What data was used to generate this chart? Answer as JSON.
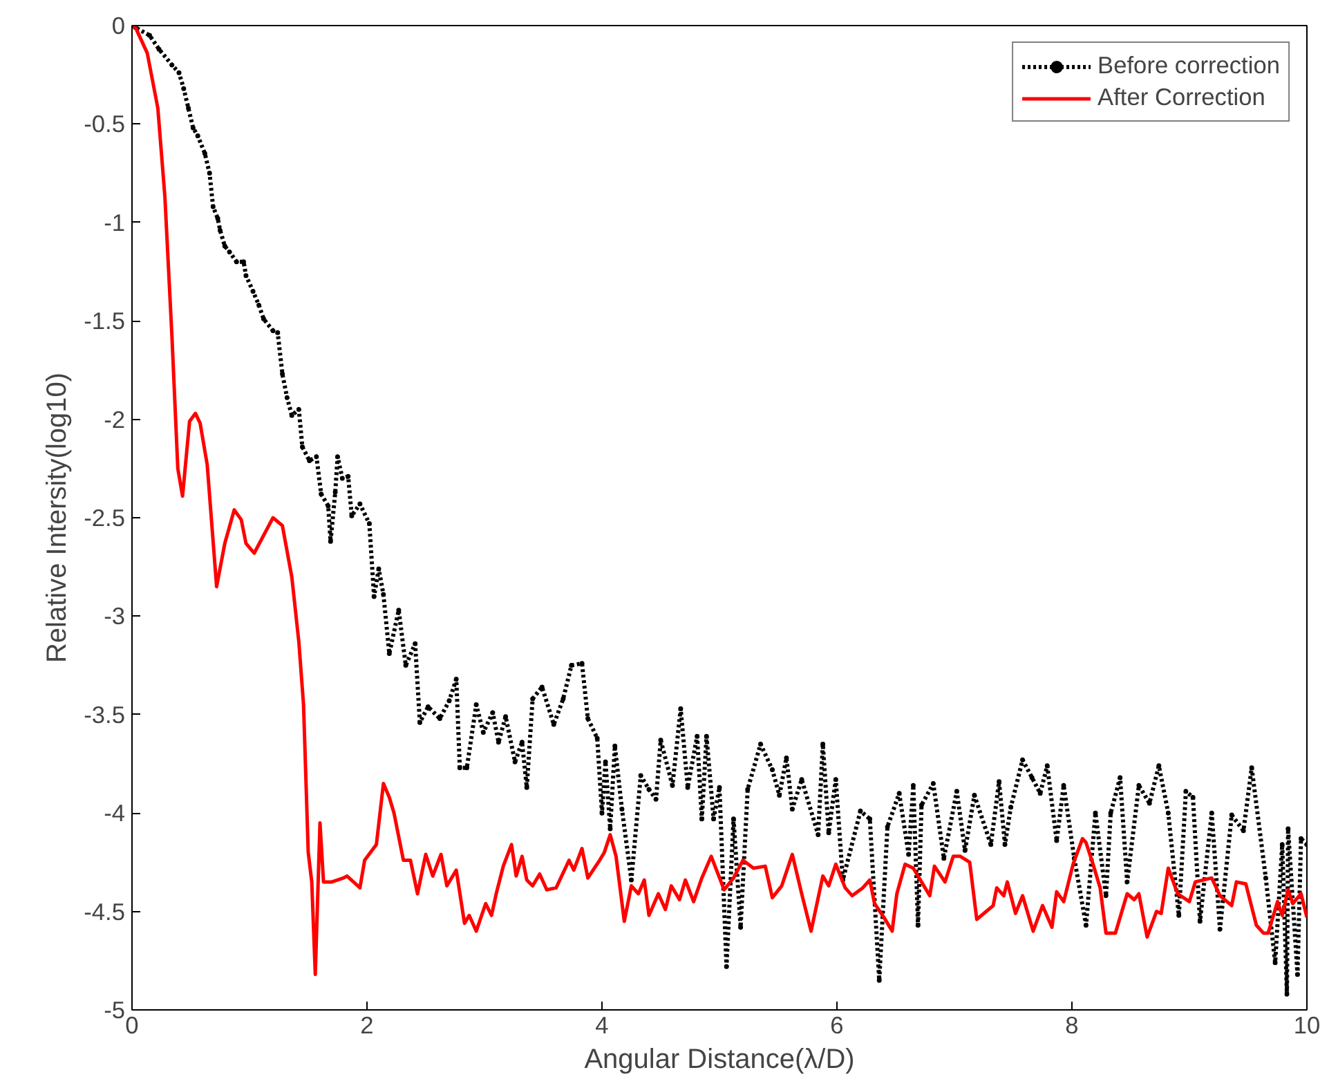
{
  "chart_data": {
    "type": "line",
    "xlabel": "Angular Distance(λ/D)",
    "ylabel": "Relative Intersity(log10)",
    "xlim": [
      0,
      10
    ],
    "ylim": [
      -5,
      0
    ],
    "xticks": [
      0,
      2,
      4,
      6,
      8,
      10
    ],
    "yticks": [
      -5,
      -4.5,
      -4,
      -3.5,
      -3,
      -2.5,
      -2,
      -1.5,
      -1,
      -0.5,
      0
    ],
    "grid": false,
    "legend": "top right",
    "series": [
      {
        "name": "Before correction",
        "color": "#000000",
        "line_style": "dotted",
        "marker": "circle",
        "x": [
          0,
          0.03,
          0.15,
          0.23,
          0.34,
          0.4,
          0.44,
          0.48,
          0.52,
          0.56,
          0.62,
          0.66,
          0.69,
          0.73,
          0.75,
          0.79,
          0.83,
          0.89,
          0.95,
          0.97,
          1.03,
          1.08,
          1.12,
          1.2,
          1.24,
          1.28,
          1.32,
          1.36,
          1.42,
          1.45,
          1.51,
          1.57,
          1.61,
          1.67,
          1.69,
          1.73,
          1.75,
          1.79,
          1.84,
          1.87,
          1.94,
          2.02,
          2.06,
          2.1,
          2.14,
          2.19,
          2.27,
          2.33,
          2.41,
          2.45,
          2.52,
          2.62,
          2.7,
          2.76,
          2.79,
          2.85,
          2.93,
          2.99,
          3.07,
          3.12,
          3.18,
          3.26,
          3.32,
          3.36,
          3.41,
          3.49,
          3.59,
          3.67,
          3.74,
          3.83,
          3.88,
          3.96,
          4.0,
          4.03,
          4.07,
          4.11,
          4.17,
          4.25,
          4.33,
          4.4,
          4.46,
          4.5,
          4.6,
          4.67,
          4.73,
          4.81,
          4.85,
          4.89,
          4.95,
          5.0,
          5.06,
          5.12,
          5.18,
          5.24,
          5.35,
          5.45,
          5.51,
          5.57,
          5.62,
          5.7,
          5.84,
          5.88,
          5.93,
          5.99,
          6.05,
          6.2,
          6.28,
          6.36,
          6.43,
          6.53,
          6.61,
          6.65,
          6.69,
          6.72,
          6.82,
          6.91,
          7.02,
          7.09,
          7.17,
          7.31,
          7.38,
          7.43,
          7.48,
          7.58,
          7.66,
          7.73,
          7.79,
          7.87,
          7.93,
          8.02,
          8.12,
          8.2,
          8.29,
          8.33,
          8.41,
          8.47,
          8.57,
          8.66,
          8.74,
          8.82,
          8.91,
          8.97,
          9.03,
          9.09,
          9.19,
          9.26,
          9.36,
          9.46,
          9.53,
          9.65,
          9.73,
          9.79,
          9.83,
          9.84,
          9.92,
          9.95,
          10.0
        ],
        "values": [
          0,
          -0.01,
          -0.05,
          -0.12,
          -0.2,
          -0.24,
          -0.32,
          -0.42,
          -0.52,
          -0.56,
          -0.65,
          -0.75,
          -0.92,
          -0.98,
          -1.04,
          -1.12,
          -1.15,
          -1.2,
          -1.2,
          -1.27,
          -1.35,
          -1.42,
          -1.49,
          -1.55,
          -1.56,
          -1.77,
          -1.89,
          -1.98,
          -1.95,
          -2.14,
          -2.21,
          -2.19,
          -2.38,
          -2.44,
          -2.62,
          -2.37,
          -2.19,
          -2.3,
          -2.29,
          -2.49,
          -2.43,
          -2.53,
          -2.9,
          -2.76,
          -2.89,
          -3.19,
          -2.97,
          -3.25,
          -3.14,
          -3.54,
          -3.46,
          -3.52,
          -3.43,
          -3.32,
          -3.77,
          -3.77,
          -3.45,
          -3.59,
          -3.49,
          -3.64,
          -3.51,
          -3.74,
          -3.64,
          -3.87,
          -3.42,
          -3.36,
          -3.55,
          -3.42,
          -3.25,
          -3.24,
          -3.52,
          -3.62,
          -4.0,
          -3.74,
          -4.08,
          -3.66,
          -3.98,
          -4.34,
          -3.81,
          -3.88,
          -3.93,
          -3.63,
          -3.86,
          -3.47,
          -3.87,
          -3.61,
          -4.03,
          -3.61,
          -4.03,
          -3.87,
          -4.78,
          -4.03,
          -4.58,
          -3.88,
          -3.65,
          -3.78,
          -3.91,
          -3.72,
          -3.98,
          -3.83,
          -4.11,
          -3.65,
          -4.1,
          -3.83,
          -4.34,
          -3.99,
          -4.03,
          -4.85,
          -4.07,
          -3.9,
          -4.21,
          -3.86,
          -4.57,
          -3.96,
          -3.85,
          -4.23,
          -3.89,
          -4.19,
          -3.91,
          -4.16,
          -3.84,
          -4.16,
          -3.97,
          -3.73,
          -3.82,
          -3.9,
          -3.76,
          -4.14,
          -3.86,
          -4.23,
          -4.57,
          -4.0,
          -4.42,
          -4.0,
          -3.82,
          -4.35,
          -3.86,
          -3.95,
          -3.76,
          -4.0,
          -4.52,
          -3.89,
          -3.92,
          -4.55,
          -4.0,
          -4.59,
          -4.01,
          -4.09,
          -3.77,
          -4.33,
          -4.76,
          -4.16,
          -4.92,
          -4.08,
          -4.82,
          -4.13,
          -4.16
        ]
      },
      {
        "name": "After Correction",
        "color": "#ff0000",
        "line_style": "solid",
        "x": [
          0,
          0.03,
          0.13,
          0.22,
          0.28,
          0.34,
          0.39,
          0.43,
          0.49,
          0.54,
          0.58,
          0.64,
          0.72,
          0.79,
          0.87,
          0.93,
          0.97,
          1.04,
          1.2,
          1.28,
          1.36,
          1.42,
          1.46,
          1.5,
          1.53,
          1.56,
          1.6,
          1.63,
          1.7,
          1.8,
          1.83,
          1.94,
          1.98,
          2.08,
          2.14,
          2.19,
          2.23,
          2.31,
          2.37,
          2.43,
          2.5,
          2.56,
          2.63,
          2.68,
          2.76,
          2.83,
          2.87,
          2.93,
          3.01,
          3.06,
          3.1,
          3.16,
          3.23,
          3.27,
          3.32,
          3.36,
          3.41,
          3.47,
          3.53,
          3.61,
          3.72,
          3.76,
          3.83,
          3.88,
          3.98,
          4.02,
          4.07,
          4.12,
          4.19,
          4.25,
          4.31,
          4.36,
          4.4,
          4.48,
          4.54,
          4.59,
          4.66,
          4.71,
          4.78,
          4.85,
          4.93,
          5.04,
          5.12,
          5.2,
          5.29,
          5.39,
          5.45,
          5.53,
          5.62,
          5.7,
          5.78,
          5.88,
          5.93,
          5.99,
          6.07,
          6.13,
          6.22,
          6.28,
          6.32,
          6.4,
          6.47,
          6.51,
          6.58,
          6.65,
          6.72,
          6.79,
          6.83,
          6.92,
          6.99,
          7.05,
          7.13,
          7.19,
          7.33,
          7.36,
          7.42,
          7.45,
          7.52,
          7.58,
          7.67,
          7.75,
          7.83,
          7.87,
          7.93,
          8.01,
          8.09,
          8.12,
          8.18,
          8.24,
          8.29,
          8.37,
          8.47,
          8.53,
          8.57,
          8.64,
          8.72,
          8.76,
          8.82,
          8.9,
          9.0,
          9.05,
          9.19,
          9.26,
          9.36,
          9.4,
          9.48,
          9.57,
          9.63,
          9.67,
          9.75,
          9.79,
          9.84,
          9.88,
          9.95,
          10.0
        ],
        "values": [
          0,
          -0.01,
          -0.14,
          -0.42,
          -0.87,
          -1.58,
          -2.25,
          -2.39,
          -2.01,
          -1.97,
          -2.02,
          -2.23,
          -2.85,
          -2.63,
          -2.46,
          -2.51,
          -2.63,
          -2.68,
          -2.5,
          -2.54,
          -2.8,
          -3.13,
          -3.45,
          -4.2,
          -4.35,
          -4.82,
          -4.05,
          -4.35,
          -4.35,
          -4.33,
          -4.32,
          -4.38,
          -4.24,
          -4.16,
          -3.85,
          -3.92,
          -4.0,
          -4.24,
          -4.24,
          -4.41,
          -4.21,
          -4.32,
          -4.21,
          -4.37,
          -4.29,
          -4.56,
          -4.52,
          -4.6,
          -4.46,
          -4.52,
          -4.41,
          -4.27,
          -4.16,
          -4.32,
          -4.22,
          -4.34,
          -4.37,
          -4.31,
          -4.39,
          -4.38,
          -4.24,
          -4.29,
          -4.18,
          -4.33,
          -4.24,
          -4.2,
          -4.11,
          -4.22,
          -4.55,
          -4.37,
          -4.41,
          -4.34,
          -4.52,
          -4.41,
          -4.49,
          -4.37,
          -4.44,
          -4.34,
          -4.45,
          -4.33,
          -4.22,
          -4.39,
          -4.33,
          -4.24,
          -4.28,
          -4.27,
          -4.43,
          -4.37,
          -4.21,
          -4.41,
          -4.6,
          -4.32,
          -4.37,
          -4.26,
          -4.38,
          -4.42,
          -4.38,
          -4.34,
          -4.46,
          -4.53,
          -4.6,
          -4.41,
          -4.26,
          -4.28,
          -4.35,
          -4.42,
          -4.27,
          -4.35,
          -4.22,
          -4.22,
          -4.25,
          -4.54,
          -4.47,
          -4.38,
          -4.42,
          -4.35,
          -4.51,
          -4.42,
          -4.6,
          -4.47,
          -4.58,
          -4.4,
          -4.45,
          -4.26,
          -4.13,
          -4.15,
          -4.26,
          -4.38,
          -4.61,
          -4.61,
          -4.41,
          -4.44,
          -4.41,
          -4.63,
          -4.5,
          -4.51,
          -4.28,
          -4.41,
          -4.45,
          -4.35,
          -4.33,
          -4.42,
          -4.47,
          -4.35,
          -4.36,
          -4.57,
          -4.61,
          -4.61,
          -4.45,
          -4.52,
          -4.39,
          -4.46,
          -4.41,
          -4.53
        ]
      }
    ]
  }
}
